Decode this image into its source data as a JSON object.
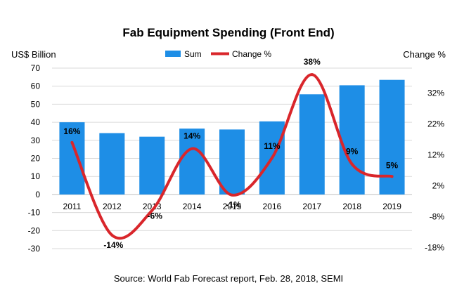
{
  "chart_data": {
    "type": "bar+line",
    "title": "Fab Equipment Spending (Front End)",
    "categories": [
      "2011",
      "2012",
      "2013",
      "2014",
      "2015",
      "2016",
      "2017",
      "2018",
      "2019"
    ],
    "series": [
      {
        "name": "Sum",
        "type": "bar",
        "axis": "left",
        "color": "#1e8ee6",
        "values": [
          40,
          34,
          32,
          36.5,
          36,
          40.5,
          55.5,
          60.5,
          63.5
        ]
      },
      {
        "name": "Change %",
        "type": "line",
        "axis": "right",
        "color": "#d9262b",
        "values": [
          16,
          -14,
          -6,
          14,
          -1,
          11,
          38,
          9,
          5
        ],
        "labels": [
          "16%",
          "-14%",
          "-6%",
          "14%",
          "-1%",
          "11%",
          "38%",
          "9%",
          "5%"
        ]
      }
    ],
    "ylabel_left": "US$ Billion",
    "ylabel_right": "Change %",
    "ylim_left": [
      -30,
      70
    ],
    "yticks_left": [
      "70",
      "60",
      "50",
      "40",
      "30",
      "20",
      "10",
      "0",
      "-10",
      "-20",
      "-30"
    ],
    "yticks_right": [
      "32%",
      "22%",
      "12%",
      "2%",
      "-8%",
      "-18%"
    ],
    "yticks_right_values": [
      32,
      22,
      12,
      2,
      -8,
      -18
    ],
    "legend_position": "top",
    "gridlines": true,
    "source": "Source: World Fab Forecast report, Feb. 28, 2018, SEMI"
  }
}
